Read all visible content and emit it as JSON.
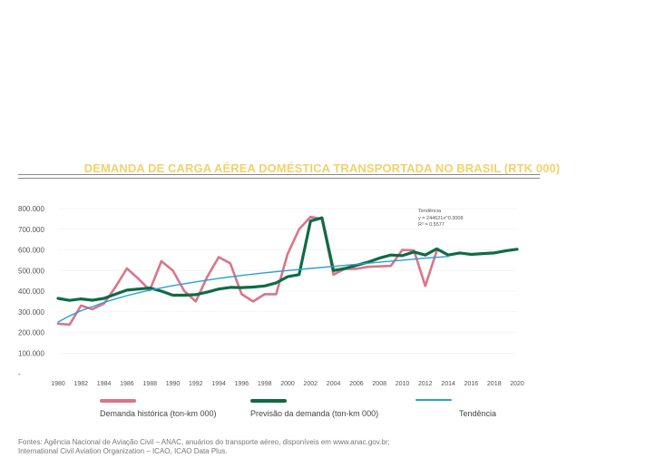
{
  "title": "DEMANDA DE CARGA AÉREA DOMÉSTICA TRANSPORTADA NO BRASIL (RTK 000)",
  "trend_annotation": {
    "line1": "Tendência",
    "line2": "y = 244621x^0.3008",
    "line3": "R² = 0.5577"
  },
  "legend": {
    "historical": "Demanda histórica (ton-km 000)",
    "forecast": "Previsão da demanda (ton-km 000)",
    "trend": "Tendência"
  },
  "sources": {
    "line1": "Fontes: Agência Nacional de Aviação Civil – ANAC, anuários do transporte aéreo, disponíveis em www.anac.gov.br;",
    "line2": "International Civil Aviation Organization – ICAO, ICAO Data Plus."
  },
  "colors": {
    "title": "#f3d16b",
    "historical": "#d9758a",
    "forecast": "#0e6b45",
    "trend": "#2aa0cf"
  },
  "chart_data": {
    "type": "line",
    "ylim": [
      0,
      800000
    ],
    "xlim": [
      1980,
      2020
    ],
    "y_ticks": [
      "-",
      "100.000",
      "200.000",
      "300.000",
      "400.000",
      "500.000",
      "600.000",
      "700.000",
      "800.000"
    ],
    "y_tick_values": [
      0,
      100000,
      200000,
      300000,
      400000,
      500000,
      600000,
      700000,
      800000
    ],
    "x_ticks": [
      "1980",
      "1982",
      "1984",
      "1986",
      "1988",
      "1990",
      "1992",
      "1994",
      "1996",
      "1998",
      "2000",
      "2002",
      "2004",
      "2006",
      "2008",
      "2010",
      "2012",
      "2014",
      "2016",
      "2018",
      "2020"
    ],
    "series": [
      {
        "name": "Demanda histórica (ton-km 000)",
        "color": "#d9758a",
        "x": [
          1980,
          1981,
          1982,
          1983,
          1984,
          1985,
          1986,
          1987,
          1988,
          1989,
          1990,
          1991,
          1992,
          1993,
          1994,
          1995,
          1996,
          1997,
          1998,
          1999,
          2000,
          2001,
          2002,
          2003,
          2004,
          2005,
          2006,
          2007,
          2008,
          2009,
          2010,
          2011,
          2012,
          2013
        ],
        "values": [
          242000,
          238000,
          330000,
          312000,
          340000,
          420000,
          510000,
          460000,
          405000,
          545000,
          500000,
          400000,
          350000,
          470000,
          565000,
          535000,
          385000,
          350000,
          385000,
          385000,
          580000,
          700000,
          760000,
          750000,
          480000,
          508000,
          508000,
          518000,
          520000,
          522000,
          600000,
          598000,
          425000,
          595000
        ]
      },
      {
        "name": "Previsão da demanda (ton-km 000)",
        "color": "#0e6b45",
        "x": [
          1980,
          1981,
          1982,
          1983,
          1984,
          1985,
          1986,
          1987,
          1988,
          1989,
          1990,
          1991,
          1992,
          1993,
          1994,
          1995,
          1996,
          1997,
          1998,
          1999,
          2000,
          2001,
          2002,
          2003,
          2004,
          2005,
          2006,
          2007,
          2008,
          2009,
          2010,
          2011,
          2012,
          2013,
          2014,
          2015,
          2016,
          2017,
          2018,
          2019,
          2020
        ],
        "values": [
          365000,
          355000,
          362000,
          356000,
          365000,
          385000,
          405000,
          410000,
          415000,
          400000,
          380000,
          380000,
          383000,
          395000,
          410000,
          418000,
          417000,
          420000,
          425000,
          440000,
          470000,
          480000,
          740000,
          755000,
          500000,
          510000,
          525000,
          540000,
          560000,
          575000,
          572000,
          590000,
          575000,
          605000,
          575000,
          585000,
          578000,
          582000,
          585000,
          595000,
          603000
        ]
      },
      {
        "name": "Tendência",
        "color": "#2aa0cf",
        "x": [
          1980,
          1981,
          1982,
          1983,
          1984,
          1985,
          1986,
          1987,
          1988,
          1989,
          1990,
          1992,
          1994,
          1996,
          1998,
          2000,
          2002,
          2004,
          2006,
          2008,
          2010,
          2012,
          2014
        ],
        "values": [
          250000,
          280000,
          305000,
          325000,
          345000,
          362000,
          378000,
          392000,
          405000,
          416000,
          427000,
          445000,
          462000,
          476000,
          489000,
          500000,
          510000,
          520000,
          530000,
          540000,
          550000,
          560000,
          568000
        ]
      }
    ]
  }
}
